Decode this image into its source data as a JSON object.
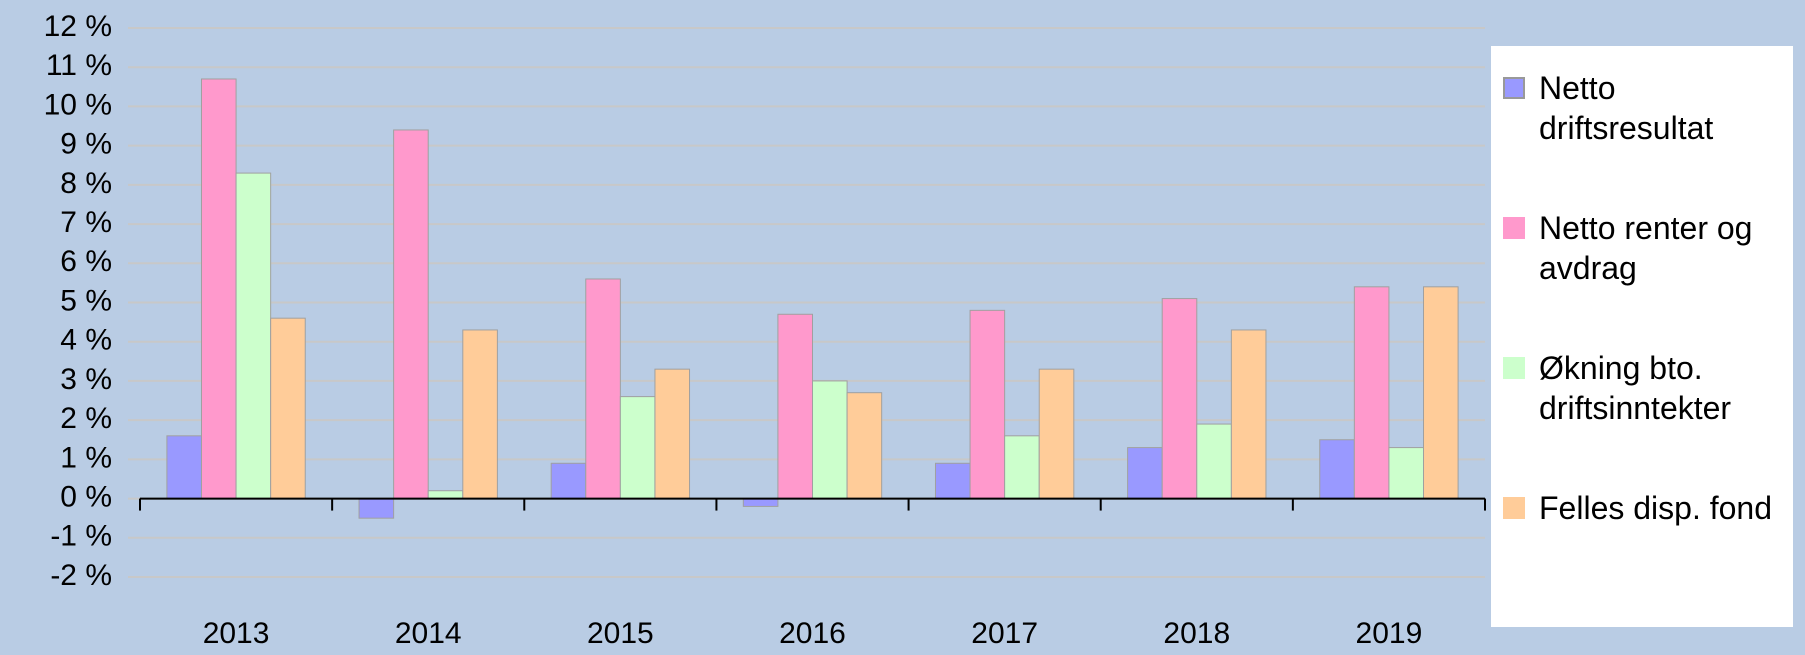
{
  "chart_data": {
    "type": "bar",
    "categories": [
      "2013",
      "2014",
      "2015",
      "2016",
      "2017",
      "2018",
      "2019"
    ],
    "series": [
      {
        "name": "Netto driftsresultat",
        "color": "#9999ff",
        "values": [
          1.6,
          -0.5,
          0.9,
          -0.2,
          0.9,
          1.3,
          1.5
        ]
      },
      {
        "name": "Netto renter og avdrag",
        "color": "#ff99cc",
        "values": [
          10.7,
          9.4,
          5.6,
          4.7,
          4.8,
          5.1,
          5.4
        ]
      },
      {
        "name": "Økning bto. driftsinntekter",
        "color": "#ccffcc",
        "values": [
          8.3,
          0.2,
          2.6,
          3.0,
          1.6,
          1.9,
          1.3
        ]
      },
      {
        "name": "Felles disp. fond",
        "color": "#ffcc99",
        "values": [
          4.6,
          4.3,
          3.3,
          2.7,
          3.3,
          4.3,
          5.4
        ]
      }
    ],
    "ylim": [
      -2,
      12
    ],
    "yticks": [
      {
        "value": -2,
        "label": "-2 %"
      },
      {
        "value": -1,
        "label": "-1 %"
      },
      {
        "value": 0,
        "label": "0 %"
      },
      {
        "value": 1,
        "label": "1 %"
      },
      {
        "value": 2,
        "label": "2 %"
      },
      {
        "value": 3,
        "label": "3 %"
      },
      {
        "value": 4,
        "label": "4 %"
      },
      {
        "value": 5,
        "label": "5 %"
      },
      {
        "value": 6,
        "label": "6 %"
      },
      {
        "value": 7,
        "label": "7 %"
      },
      {
        "value": 8,
        "label": "8 %"
      },
      {
        "value": 9,
        "label": "9 %"
      },
      {
        "value": 10,
        "label": "10 %"
      },
      {
        "value": 11,
        "label": "11 %"
      },
      {
        "value": 12,
        "label": "12 %"
      }
    ],
    "grid": true,
    "legend": "right"
  }
}
